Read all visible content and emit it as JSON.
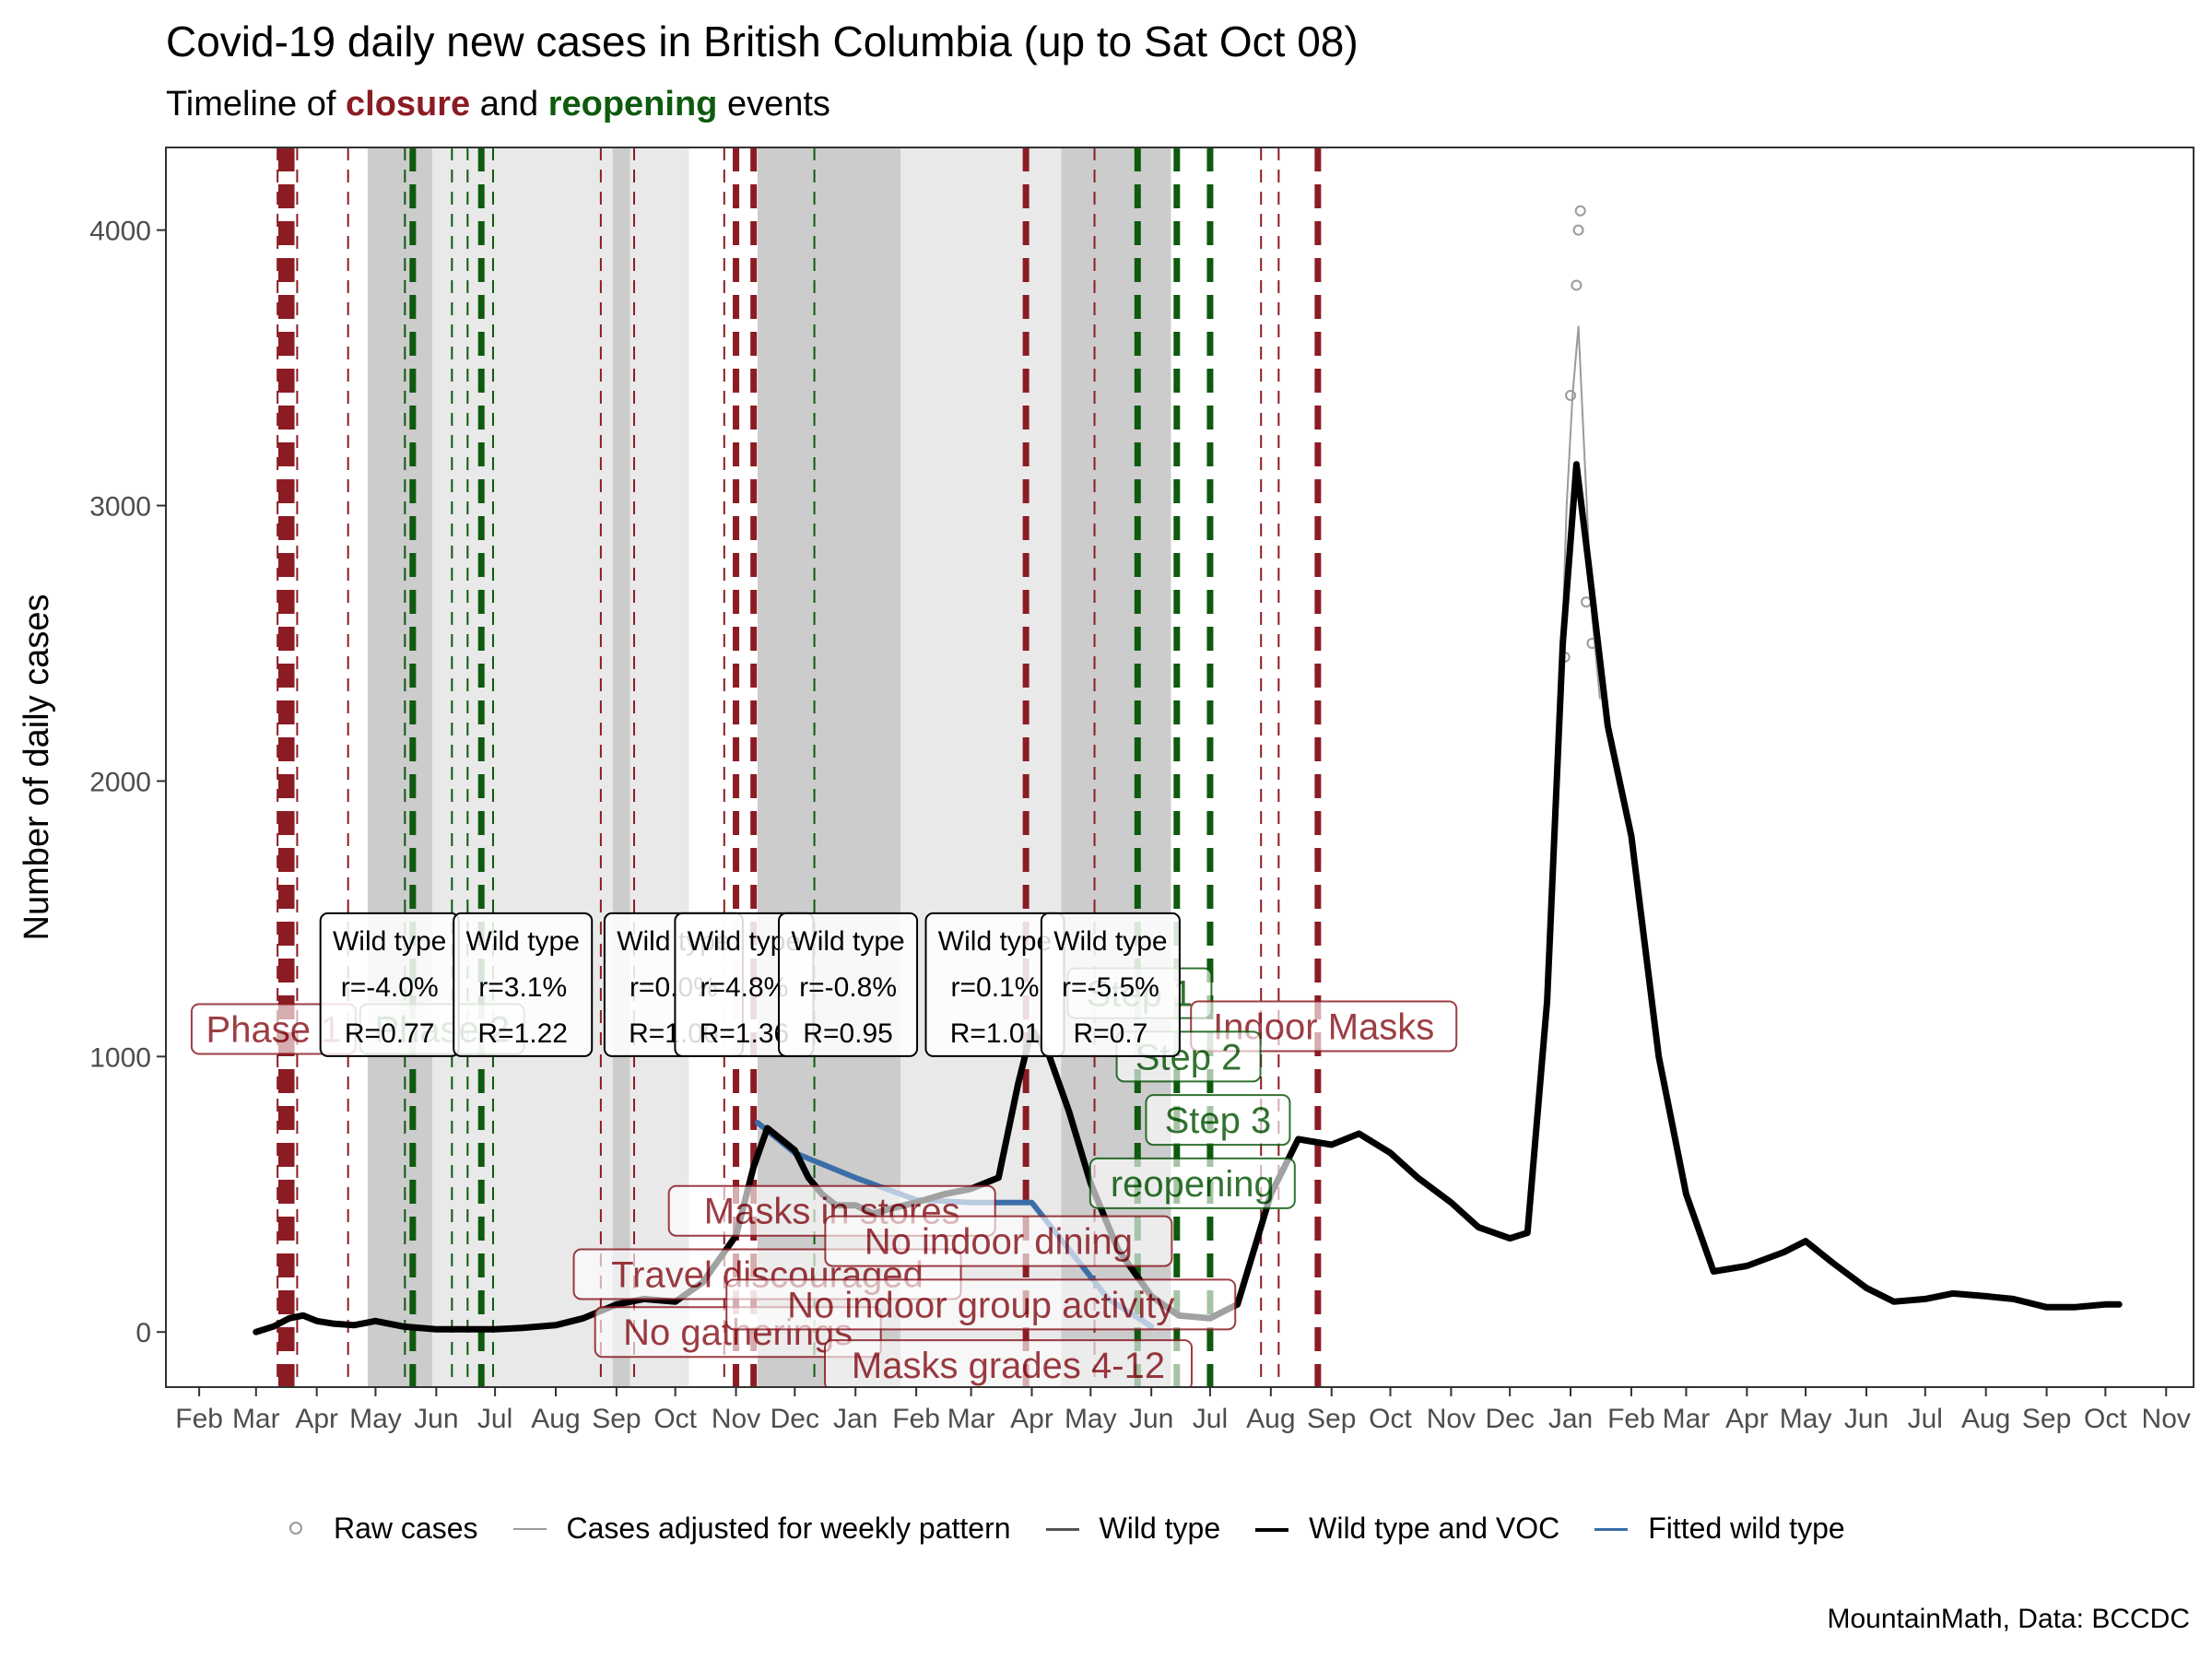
{
  "title": "Covid-19 daily new cases in British Columbia (up to Sat Oct 08)",
  "subtitle": {
    "prefix": "Timeline of ",
    "closure": "closure",
    "mid": " and ",
    "reopening": "reopening",
    "suffix": " events"
  },
  "caption": "MountainMath, Data: BCCDC",
  "colors": {
    "closure": "#8c1c24",
    "reopening": "#0e5a0e",
    "raw": "#9a9a9a",
    "adjusted": "#9a9a9a",
    "wild": "#555555",
    "total": "#000000",
    "fitted": "#3b6ea8",
    "shade_dark": "#cccccc",
    "shade_light": "#e9e9e9"
  },
  "legend": [
    {
      "label": "Raw cases",
      "key": "point",
      "color": "#9a9a9a"
    },
    {
      "label": "Cases adjusted for weekly pattern",
      "key": "line",
      "color": "#9a9a9a",
      "width": 2
    },
    {
      "label": "Wild type",
      "key": "line",
      "color": "#555555",
      "width": 3
    },
    {
      "label": "Wild type and VOC",
      "key": "line",
      "color": "#000000",
      "width": 4
    },
    {
      "label": "Fitted wild type",
      "key": "line",
      "color": "#3b6ea8",
      "width": 3
    }
  ],
  "chart_data": {
    "type": "line",
    "ylabel": "Number of daily cases",
    "xlabel": "",
    "ylim": [
      -200,
      4300
    ],
    "xlim": [
      "2020-01-15",
      "2022-11-15"
    ],
    "yticks": [
      0,
      1000,
      2000,
      3000,
      4000
    ],
    "xticks": [
      {
        "date": "2020-02-01",
        "label": "Feb"
      },
      {
        "date": "2020-03-01",
        "label": "Mar"
      },
      {
        "date": "2020-04-01",
        "label": "Apr"
      },
      {
        "date": "2020-05-01",
        "label": "May"
      },
      {
        "date": "2020-06-01",
        "label": "Jun"
      },
      {
        "date": "2020-07-01",
        "label": "Jul"
      },
      {
        "date": "2020-08-01",
        "label": "Aug"
      },
      {
        "date": "2020-09-01",
        "label": "Sep"
      },
      {
        "date": "2020-10-01",
        "label": "Oct"
      },
      {
        "date": "2020-11-01",
        "label": "Nov"
      },
      {
        "date": "2020-12-01",
        "label": "Dec"
      },
      {
        "date": "2021-01-01",
        "label": "Jan"
      },
      {
        "date": "2021-02-01",
        "label": "Feb"
      },
      {
        "date": "2021-03-01",
        "label": "Mar"
      },
      {
        "date": "2021-04-01",
        "label": "Apr"
      },
      {
        "date": "2021-05-01",
        "label": "May"
      },
      {
        "date": "2021-06-01",
        "label": "Jun"
      },
      {
        "date": "2021-07-01",
        "label": "Jul"
      },
      {
        "date": "2021-08-01",
        "label": "Aug"
      },
      {
        "date": "2021-09-01",
        "label": "Sep"
      },
      {
        "date": "2021-10-01",
        "label": "Oct"
      },
      {
        "date": "2021-11-01",
        "label": "Nov"
      },
      {
        "date": "2021-12-01",
        "label": "Dec"
      },
      {
        "date": "2022-01-01",
        "label": "Jan"
      },
      {
        "date": "2022-02-01",
        "label": "Feb"
      },
      {
        "date": "2022-03-01",
        "label": "Mar"
      },
      {
        "date": "2022-04-01",
        "label": "Apr"
      },
      {
        "date": "2022-05-01",
        "label": "May"
      },
      {
        "date": "2022-06-01",
        "label": "Jun"
      },
      {
        "date": "2022-07-01",
        "label": "Jul"
      },
      {
        "date": "2022-08-01",
        "label": "Aug"
      },
      {
        "date": "2022-09-01",
        "label": "Sep"
      },
      {
        "date": "2022-10-01",
        "label": "Oct"
      },
      {
        "date": "2022-11-01",
        "label": "Nov"
      }
    ],
    "shaded_periods": [
      {
        "start": "2020-04-27",
        "end": "2020-05-30",
        "tone": "dark"
      },
      {
        "start": "2020-05-30",
        "end": "2020-08-30",
        "tone": "light"
      },
      {
        "start": "2020-08-30",
        "end": "2020-09-08",
        "tone": "dark"
      },
      {
        "start": "2020-09-08",
        "end": "2020-10-08",
        "tone": "light"
      },
      {
        "start": "2020-11-12",
        "end": "2021-01-24",
        "tone": "dark"
      },
      {
        "start": "2021-01-24",
        "end": "2021-04-16",
        "tone": "light"
      },
      {
        "start": "2021-04-16",
        "end": "2021-06-11",
        "tone": "dark"
      }
    ],
    "event_lines": [
      {
        "date": "2020-03-12",
        "kind": "closure",
        "style": "thin"
      },
      {
        "date": "2020-03-14",
        "kind": "closure",
        "style": "thick"
      },
      {
        "date": "2020-03-17",
        "kind": "closure",
        "style": "thick"
      },
      {
        "date": "2020-03-19",
        "kind": "closure",
        "style": "thick"
      },
      {
        "date": "2020-03-22",
        "kind": "closure",
        "style": "thin"
      },
      {
        "date": "2020-04-17",
        "kind": "closure",
        "style": "thin"
      },
      {
        "date": "2020-05-16",
        "kind": "reopening",
        "style": "thin"
      },
      {
        "date": "2020-05-20",
        "kind": "reopening",
        "style": "thick"
      },
      {
        "date": "2020-06-09",
        "kind": "reopening",
        "style": "thin"
      },
      {
        "date": "2020-06-17",
        "kind": "reopening",
        "style": "thin"
      },
      {
        "date": "2020-06-24",
        "kind": "reopening",
        "style": "thick"
      },
      {
        "date": "2020-06-30",
        "kind": "reopening",
        "style": "thin"
      },
      {
        "date": "2020-08-24",
        "kind": "closure",
        "style": "thin"
      },
      {
        "date": "2020-09-10",
        "kind": "closure",
        "style": "thin"
      },
      {
        "date": "2020-10-26",
        "kind": "closure",
        "style": "thin"
      },
      {
        "date": "2020-11-01",
        "kind": "closure",
        "style": "thick"
      },
      {
        "date": "2020-11-10",
        "kind": "closure",
        "style": "thick"
      },
      {
        "date": "2020-12-11",
        "kind": "reopening",
        "style": "thin"
      },
      {
        "date": "2021-03-29",
        "kind": "closure",
        "style": "thick"
      },
      {
        "date": "2021-05-03",
        "kind": "closure",
        "style": "thin"
      },
      {
        "date": "2021-05-25",
        "kind": "reopening",
        "style": "thick"
      },
      {
        "date": "2021-06-14",
        "kind": "reopening",
        "style": "thick"
      },
      {
        "date": "2021-07-01",
        "kind": "reopening",
        "style": "thick"
      },
      {
        "date": "2021-07-27",
        "kind": "closure",
        "style": "thin"
      },
      {
        "date": "2021-08-05",
        "kind": "closure",
        "style": "thin"
      },
      {
        "date": "2021-08-25",
        "kind": "closure",
        "style": "thick"
      }
    ],
    "event_labels": [
      {
        "text": "Phase 1",
        "date": "2020-03-10",
        "y": 1100,
        "kind": "closure"
      },
      {
        "text": "Phase 2",
        "date": "2020-06-04",
        "y": 1100,
        "kind": "reopening"
      },
      {
        "text": "Masks in stores",
        "date": "2020-12-20",
        "y": 440,
        "kind": "closure"
      },
      {
        "text": "Travel discouraged",
        "date": "2020-11-17",
        "y": 210,
        "kind": "closure"
      },
      {
        "text": "No gatherings",
        "date": "2020-11-02",
        "y": 0,
        "kind": "closure"
      },
      {
        "text": "No indoor dining",
        "date": "2021-03-15",
        "y": 330,
        "kind": "closure"
      },
      {
        "text": "No indoor group activity",
        "date": "2021-03-06",
        "y": 100,
        "kind": "closure"
      },
      {
        "text": "Masks grades 4-12",
        "date": "2021-03-20",
        "y": -120,
        "kind": "closure"
      },
      {
        "text": "Step 1",
        "date": "2021-05-26",
        "y": 1230,
        "kind": "reopening"
      },
      {
        "text": "Indoor Masks",
        "date": "2021-08-28",
        "y": 1110,
        "kind": "closure"
      },
      {
        "text": "Step 2",
        "date": "2021-06-20",
        "y": 1000,
        "kind": "reopening"
      },
      {
        "text": "Step 3",
        "date": "2021-07-05",
        "y": 770,
        "kind": "reopening"
      },
      {
        "text": "reopening",
        "date": "2021-06-22",
        "y": 540,
        "kind": "reopening"
      }
    ],
    "growth_annotations": [
      {
        "date": "2020-04-17",
        "lines": [
          "Wild type",
          "r=-4.0%",
          "R=0.77"
        ]
      },
      {
        "date": "2020-06-24",
        "lines": [
          "Wild type",
          "r=3.1%",
          "R=1.22"
        ]
      },
      {
        "date": "2020-09-09",
        "lines": [
          "Wild type",
          "r=0.0%",
          "R=1.00"
        ]
      },
      {
        "date": "2020-10-15",
        "lines": [
          "Wild type",
          "r=4.8%",
          "R=1.36"
        ]
      },
      {
        "date": "2020-12-07",
        "lines": [
          "Wild type",
          "r=-0.8%",
          "R=0.95"
        ]
      },
      {
        "date": "2021-02-20",
        "lines": [
          "Wild type",
          "r=0.1%",
          "R=1.01"
        ]
      },
      {
        "date": "2021-04-20",
        "lines": [
          "Wild type",
          "r=-5.5%",
          "R=0.7"
        ]
      }
    ],
    "series": [
      {
        "name": "Wild type and VOC",
        "x": [
          "2020-03-01",
          "2020-03-10",
          "2020-03-18",
          "2020-03-25",
          "2020-04-01",
          "2020-04-10",
          "2020-04-20",
          "2020-05-01",
          "2020-05-15",
          "2020-06-01",
          "2020-06-15",
          "2020-07-01",
          "2020-07-15",
          "2020-08-01",
          "2020-08-15",
          "2020-09-01",
          "2020-09-15",
          "2020-10-01",
          "2020-10-15",
          "2020-11-01",
          "2020-11-10",
          "2020-11-17",
          "2020-11-24",
          "2020-12-01",
          "2020-12-08",
          "2020-12-15",
          "2020-12-22",
          "2021-01-01",
          "2021-01-10",
          "2021-01-20",
          "2021-02-01",
          "2021-02-15",
          "2021-03-01",
          "2021-03-15",
          "2021-03-25",
          "2021-04-01",
          "2021-04-10",
          "2021-04-20",
          "2021-05-01",
          "2021-05-15",
          "2021-06-01",
          "2021-06-15",
          "2021-07-01",
          "2021-07-15",
          "2021-08-01",
          "2021-08-15",
          "2021-09-01",
          "2021-09-15",
          "2021-10-01",
          "2021-10-15",
          "2021-11-01",
          "2021-11-15",
          "2021-12-01",
          "2021-12-10",
          "2021-12-20",
          "2021-12-28",
          "2022-01-04",
          "2022-01-10",
          "2022-01-20",
          "2022-02-01",
          "2022-02-15",
          "2022-03-01",
          "2022-03-15",
          "2022-04-01",
          "2022-04-20",
          "2022-05-01",
          "2022-05-15",
          "2022-06-01",
          "2022-06-15",
          "2022-07-01",
          "2022-07-15",
          "2022-08-01",
          "2022-08-15",
          "2022-09-01",
          "2022-09-15",
          "2022-10-01",
          "2022-10-08"
        ],
        "y": [
          0,
          20,
          50,
          60,
          40,
          30,
          25,
          40,
          20,
          10,
          10,
          10,
          15,
          25,
          50,
          100,
          120,
          110,
          180,
          350,
          600,
          740,
          700,
          660,
          560,
          500,
          460,
          460,
          430,
          450,
          470,
          500,
          520,
          560,
          900,
          1100,
          1000,
          800,
          540,
          300,
          130,
          60,
          50,
          100,
          500,
          700,
          680,
          720,
          650,
          560,
          470,
          380,
          340,
          360,
          1200,
          2500,
          3150,
          2800,
          2200,
          1800,
          1000,
          500,
          220,
          240,
          290,
          330,
          250,
          160,
          110,
          120,
          140,
          130,
          120,
          90,
          90,
          100,
          100
        ]
      },
      {
        "name": "Fitted wild type",
        "x": [
          "2020-11-12",
          "2020-12-01",
          "2021-01-01",
          "2021-02-01",
          "2021-03-01",
          "2021-04-01",
          "2021-04-20",
          "2021-05-10",
          "2021-06-01"
        ],
        "y": [
          760,
          650,
          560,
          480,
          470,
          470,
          300,
          120,
          20
        ]
      },
      {
        "name": "Cases adjusted for weekly pattern",
        "x": [
          "2021-12-25",
          "2021-12-30",
          "2022-01-02",
          "2022-01-05",
          "2022-01-08",
          "2022-01-12",
          "2022-01-16"
        ],
        "y": [
          1900,
          3000,
          3400,
          3650,
          3200,
          2600,
          2300
        ]
      },
      {
        "name": "Raw cases",
        "x": [
          "2021-12-29",
          "2022-01-01",
          "2022-01-04",
          "2022-01-05",
          "2022-01-06",
          "2022-01-09",
          "2022-01-12"
        ],
        "y": [
          2450,
          3400,
          3800,
          4000,
          4070,
          2650,
          2500
        ]
      }
    ]
  }
}
